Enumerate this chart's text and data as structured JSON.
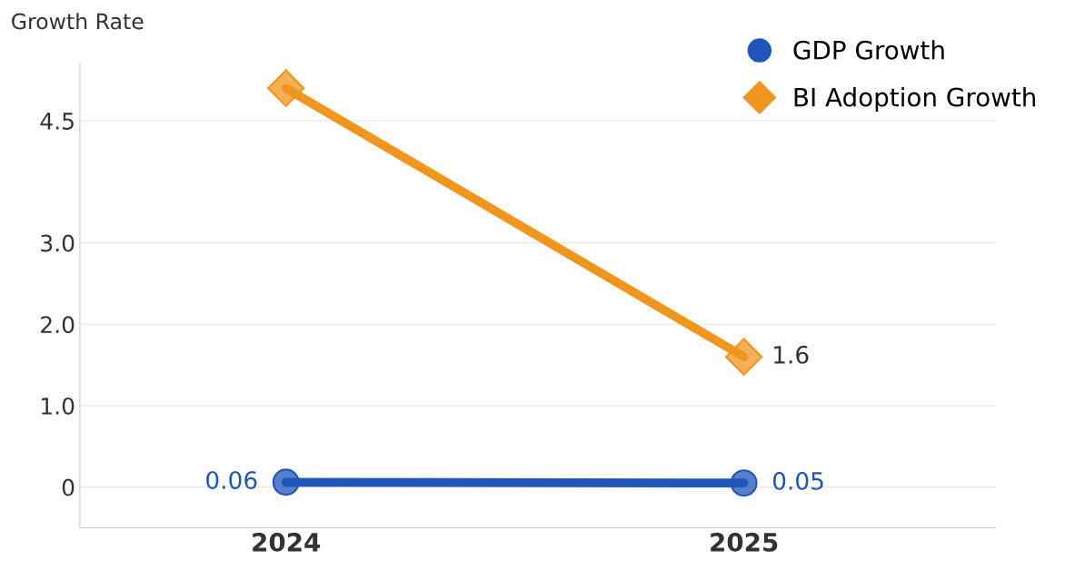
{
  "chart_data": {
    "type": "line",
    "ylabel": "Growth Rate",
    "categories": [
      "2024",
      "2025"
    ],
    "series": [
      {
        "name": "GDP Growth",
        "color": "#1f56b8",
        "marker": "circle",
        "values": [
          0.06,
          0.05
        ],
        "value_labels": [
          "0.06",
          "0.05"
        ]
      },
      {
        "name": "BI Adoption Growth",
        "color": "#f0961e",
        "marker": "diamond",
        "values": [
          4.9,
          1.6
        ],
        "value_labels": [
          null,
          "1.6"
        ]
      }
    ],
    "ylim": [
      -0.5,
      5.2
    ],
    "yticks": [
      0,
      {
        "value": 1,
        "label": "1.0"
      },
      {
        "value": 2,
        "label": "2.0"
      },
      {
        "value": 3,
        "label": "3.0"
      },
      4.5
    ],
    "grid": "y",
    "legend": "top right",
    "line_style": "solid"
  }
}
